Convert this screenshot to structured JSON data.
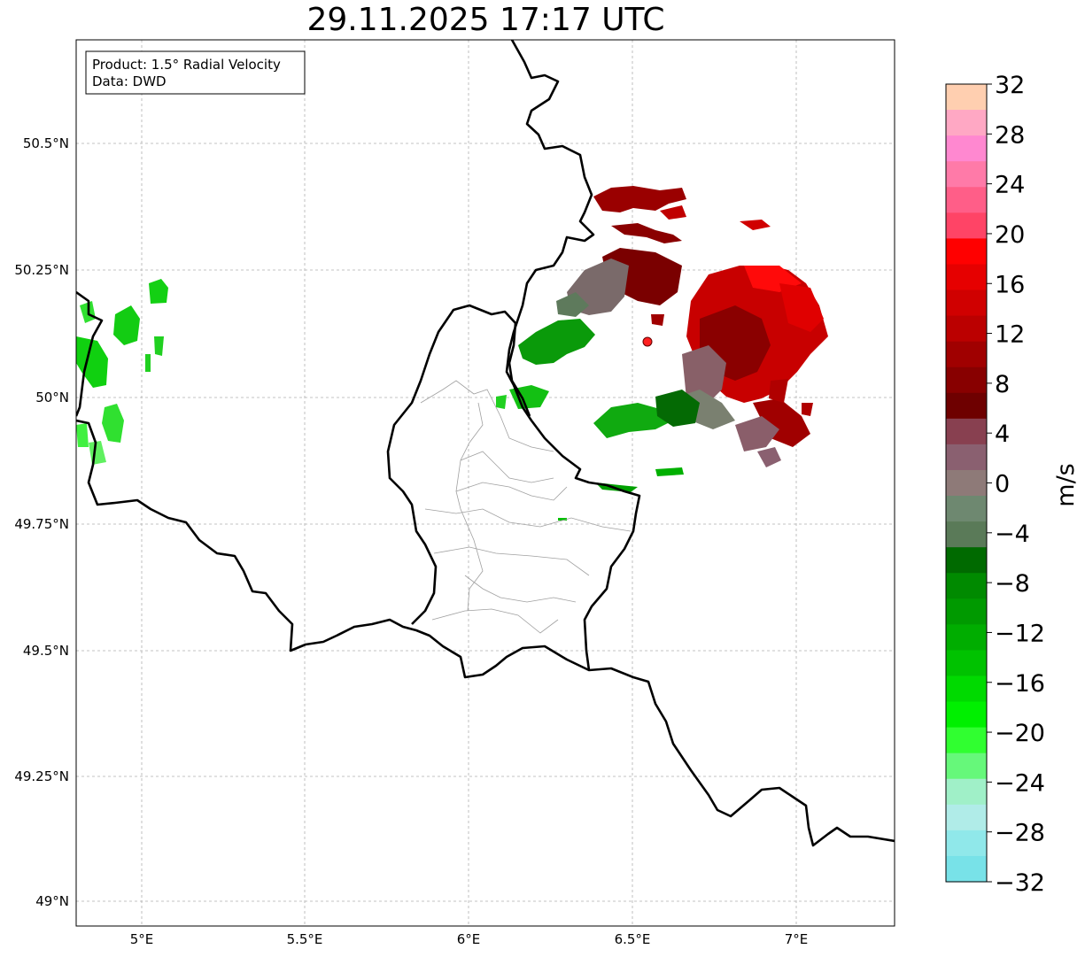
{
  "title": "29.11.2025 17:17 UTC",
  "info_box": {
    "product": "Product: 1.5° Radial Velocity",
    "data": "Data: DWD"
  },
  "axes": {
    "x_ticks": [
      "5°E",
      "5.5°E",
      "6°E",
      "6.5°E",
      "7°E"
    ],
    "y_ticks": [
      "50.5°N",
      "50.25°N",
      "50°N",
      "49.75°N",
      "49.5°N",
      "49.25°N",
      "49°N"
    ]
  },
  "colorbar": {
    "unit": "m/s",
    "tick_labels": [
      "32",
      "28",
      "24",
      "20",
      "16",
      "12",
      "8",
      "4",
      "0",
      "−4",
      "−8",
      "−12",
      "−16",
      "−20",
      "−24",
      "−28",
      "−32"
    ],
    "colors_top_to_bottom": [
      "#ffcfb0",
      "#ffa8c4",
      "#ff88d0",
      "#ff7aa8",
      "#ff5e88",
      "#ff4466",
      "#ff0000",
      "#e60000",
      "#d00000",
      "#bb0000",
      "#a00000",
      "#880000",
      "#6e0000",
      "#884050",
      "#8a6070",
      "#8e7a78",
      "#6e8870",
      "#5a7a58",
      "#006a00",
      "#008a00",
      "#009a00",
      "#00ad00",
      "#00c200",
      "#00da00",
      "#00f000",
      "#30ff30",
      "#66f87a",
      "#a0f0c8",
      "#b0ece8",
      "#90e8ea",
      "#78e2e8"
    ]
  },
  "radar_site": {
    "color": "#ff2020"
  },
  "colors": {
    "border": "#000000",
    "admin_border": "#a0a0a0",
    "grid": "#b0b0b0"
  }
}
